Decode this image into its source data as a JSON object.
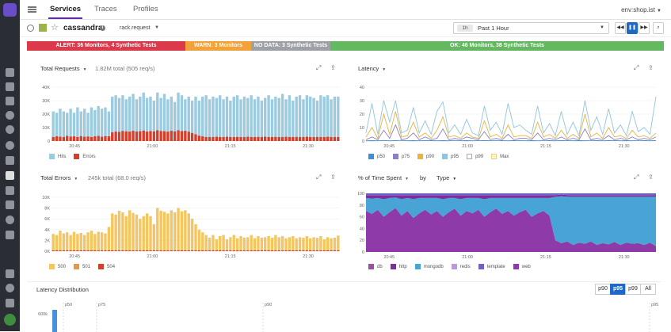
{
  "nav": {
    "tabs": [
      {
        "label": "Services",
        "active": true
      },
      {
        "label": "Traces",
        "active": false
      },
      {
        "label": "Profiles",
        "active": false
      }
    ],
    "env": "env:shop.ist"
  },
  "service": {
    "name": "cassandra",
    "operation": "rack.request",
    "time_pill": "1h",
    "time_range": "Past 1 Hour"
  },
  "status": {
    "alert": "ALERT: 36 Monitors, 4 Synthetic Tests",
    "warn": "WARN: 3 Monitors",
    "nodata": "NO DATA: 3 Synthetic Tests",
    "ok": "OK: 46 Monitors, 38 Synthetic Tests"
  },
  "panels": {
    "requests": {
      "title": "Total Requests",
      "subtitle": "1.82M total (505 req/s)"
    },
    "latency": {
      "title": "Latency"
    },
    "errors": {
      "title": "Total Errors",
      "subtitle": "245k total (68.0 req/s)"
    },
    "timespent": {
      "title": "% of Time Spent",
      "by": "by",
      "group": "Type"
    }
  },
  "latency_distribution": {
    "title": "Latency Distribution",
    "buttons": [
      {
        "label": "p90",
        "active": false
      },
      {
        "label": "p95",
        "active": true
      },
      {
        "label": "p99",
        "active": false
      },
      {
        "label": "All",
        "active": false
      }
    ],
    "markers": [
      "p50",
      "p75",
      "p90",
      "p95"
    ],
    "y_tick": "600k"
  },
  "colors": {
    "hits": "#9ccbe0",
    "errors_red": "#d33f2a",
    "e500": "#f4c662",
    "e501": "#e8974a",
    "e504": "#d33f2a",
    "p50": "#3d8ed3",
    "p75": "#8c7fc5",
    "p90": "#e8b33f",
    "p95": "#8fc5de",
    "p99": "#ffffff",
    "max": "#f7e7a0",
    "db": "#9a4fa0",
    "http": "#7e2f9e",
    "mongodb": "#47a4d4",
    "redis": "#b99ad8",
    "template": "#6c63c7",
    "web": "#8e3ba9"
  },
  "chart_data": [
    {
      "type": "bar",
      "title": "Total Requests",
      "x_ticks": [
        "20:45",
        "21:00",
        "21:15",
        "21:30"
      ],
      "y_ticks": [
        "0",
        "10K",
        "20K",
        "30K",
        "40K"
      ],
      "ylim": [
        0,
        40000
      ],
      "series": [
        {
          "name": "Hits",
          "values": [
            22000,
            21000,
            24000,
            22000,
            21000,
            24000,
            21000,
            25000,
            22000,
            24000,
            21000,
            25000,
            23000,
            26000,
            24000,
            25000,
            22000,
            33000,
            34000,
            32000,
            34000,
            31000,
            33000,
            35000,
            31000,
            33000,
            36000,
            32000,
            33000,
            30000,
            36000,
            32000,
            35000,
            31000,
            33000,
            29000,
            36000,
            34000,
            31000,
            33000,
            30000,
            33000,
            30000,
            33000,
            34000,
            31000,
            33000,
            32000,
            34000,
            31000,
            33000,
            30000,
            33000,
            34000,
            31000,
            33000,
            32000,
            34000,
            31000,
            33000,
            30000,
            32000,
            34000,
            31000,
            33000,
            32000,
            35000,
            31000,
            34000,
            30000,
            33000,
            34000,
            31000,
            34000,
            33000,
            32000,
            30000,
            34000,
            33000,
            34000,
            31000,
            33000,
            33000
          ]
        },
        {
          "name": "Errors",
          "values": [
            3000,
            3500,
            3200,
            3000,
            3800,
            3300,
            3500,
            3000,
            3600,
            3200,
            3400,
            3000,
            3500,
            3800,
            3200,
            3600,
            3500,
            6500,
            7000,
            6800,
            7500,
            7200,
            7000,
            7600,
            7100,
            7300,
            7800,
            7000,
            7400,
            7200,
            8000,
            7500,
            7300,
            7000,
            7600,
            7200,
            8000,
            7400,
            7600,
            7000,
            6000,
            5000,
            4000,
            3500,
            3000,
            3000,
            3000,
            3200,
            3000,
            3000,
            3200,
            3000,
            3000,
            3100,
            3000,
            3000,
            3200,
            3000,
            3000,
            3100,
            3000,
            3200,
            3000,
            3000,
            3100,
            3000,
            3000,
            3200,
            3000,
            3000,
            3100,
            3000,
            3000,
            3200,
            3000,
            3000,
            3100,
            3000,
            3000,
            3200,
            3000,
            3000,
            3000
          ]
        }
      ],
      "legend": [
        "Hits",
        "Errors"
      ]
    },
    {
      "type": "line",
      "title": "Latency",
      "x_ticks": [
        "20:45",
        "21:00",
        "21:15",
        "21:30"
      ],
      "y_ticks": [
        "0",
        "10",
        "20",
        "30",
        "40"
      ],
      "ylim": [
        0,
        40
      ],
      "series": [
        {
          "name": "p50",
          "values": [
            0.2,
            0.3,
            0.2,
            0.4,
            0.2,
            0.3,
            0.5,
            0.2,
            0.3,
            0.2,
            0.4,
            0.3,
            0.2,
            0.3,
            0.2,
            0.5,
            0.2,
            0.3,
            0.2,
            0.4,
            0.3,
            0.2,
            0.5,
            0.3,
            0.2,
            0.3,
            0.4,
            0.2,
            0.3,
            0.2,
            0.5,
            0.3,
            0.2,
            0.3,
            0.4,
            0.2,
            0.3,
            0.2,
            0.5,
            0.3,
            0.2,
            0.3,
            0.4,
            0.2,
            0.3,
            0.2,
            0.5,
            0.3,
            0.2,
            0.3
          ]
        },
        {
          "name": "p75",
          "values": [
            1,
            3,
            1,
            8,
            2,
            12,
            1,
            2,
            6,
            1,
            3,
            1,
            2,
            9,
            1,
            2,
            1,
            3,
            2,
            1,
            7,
            1,
            2,
            1,
            5,
            1,
            2,
            2,
            1,
            6,
            1,
            2,
            1,
            3,
            1,
            2,
            1,
            9,
            1,
            2,
            1,
            4,
            1,
            2,
            1,
            3,
            1,
            2,
            1,
            3
          ]
        },
        {
          "name": "p90",
          "values": [
            3,
            10,
            2,
            20,
            5,
            22,
            3,
            4,
            14,
            3,
            6,
            2,
            8,
            18,
            3,
            4,
            2,
            6,
            3,
            2,
            15,
            3,
            5,
            2,
            12,
            3,
            4,
            4,
            2,
            14,
            3,
            5,
            2,
            8,
            2,
            5,
            2,
            20,
            3,
            6,
            2,
            10,
            3,
            4,
            2,
            8,
            3,
            4,
            2,
            6
          ]
        },
        {
          "name": "p95",
          "values": [
            6,
            28,
            5,
            30,
            14,
            30,
            6,
            8,
            25,
            6,
            15,
            5,
            22,
            29,
            6,
            12,
            5,
            16,
            6,
            4,
            26,
            8,
            14,
            5,
            28,
            10,
            12,
            8,
            5,
            26,
            6,
            13,
            4,
            22,
            5,
            14,
            4,
            30,
            8,
            18,
            5,
            24,
            6,
            12,
            4,
            22,
            7,
            10,
            5,
            33
          ]
        },
        {
          "name": "p99",
          "values": []
        },
        {
          "name": "Max",
          "values": []
        }
      ],
      "legend": [
        "p50",
        "p75",
        "p90",
        "p95",
        "p99",
        "Max"
      ]
    },
    {
      "type": "bar",
      "title": "Total Errors",
      "x_ticks": [
        "20:45",
        "21:00",
        "21:15",
        "21:30"
      ],
      "y_ticks": [
        "0K",
        "2K",
        "4K",
        "6K",
        "8K",
        "10K"
      ],
      "ylim": [
        0,
        10000
      ],
      "series": [
        {
          "name": "500",
          "values": [
            3200,
            3000,
            3800,
            3300,
            3500,
            3000,
            3600,
            3200,
            3400,
            3000,
            3500,
            3800,
            3200,
            3600,
            3500,
            3300,
            4500,
            7000,
            6800,
            7500,
            7200,
            6500,
            7600,
            7100,
            6800,
            6000,
            6500,
            7000,
            6500,
            5000,
            8000,
            7500,
            7300,
            7000,
            7600,
            7200,
            8000,
            7400,
            7600,
            7000,
            6000,
            5000,
            4000,
            3500,
            3000,
            2500,
            3000,
            2200,
            2800,
            3000,
            2200,
            2600,
            3000,
            2400,
            2800,
            2500,
            2600,
            3000,
            2400,
            2800,
            2500,
            2600,
            2800,
            2500,
            3000,
            2600,
            2800,
            2400,
            2600,
            2800,
            2400,
            2600,
            2500,
            2800,
            2400,
            2600,
            2500,
            2800,
            2200,
            2600,
            2400,
            2500,
            2900
          ]
        },
        {
          "name": "501",
          "values": []
        },
        {
          "name": "504",
          "values": [
            150,
            150,
            150,
            150,
            150,
            150,
            150,
            150,
            150,
            150,
            150,
            150,
            150,
            150,
            150,
            150,
            150,
            150,
            150,
            150,
            150,
            150,
            150,
            150,
            150,
            150,
            150,
            150,
            150,
            150,
            150,
            150,
            150,
            150,
            150,
            150,
            150,
            150,
            150,
            150,
            150,
            150,
            150,
            150,
            150,
            150,
            150,
            150,
            150,
            150,
            150,
            150,
            150,
            150,
            150,
            150,
            150,
            150,
            150,
            150,
            150,
            150,
            150,
            150,
            150,
            150,
            150,
            150,
            150,
            150,
            150,
            150,
            150,
            150,
            150,
            150,
            150,
            150,
            150,
            150,
            150,
            150,
            150
          ]
        }
      ],
      "legend": [
        "500",
        "501",
        "504"
      ]
    },
    {
      "type": "area",
      "title": "% of Time Spent",
      "x_ticks": [
        "20:45",
        "21:00",
        "21:15",
        "21:30"
      ],
      "y_ticks": [
        "0",
        "20",
        "40",
        "60",
        "80",
        "100"
      ],
      "ylim": [
        0,
        100
      ],
      "series": [
        {
          "name": "web",
          "values": [
            70,
            65,
            72,
            60,
            68,
            75,
            62,
            70,
            58,
            66,
            72,
            64,
            70,
            60,
            68,
            74,
            62,
            70,
            66,
            72,
            60,
            68,
            74,
            65,
            70,
            62,
            68,
            72,
            60,
            66,
            70,
            62,
            20,
            15,
            18,
            12,
            16,
            14,
            18,
            12,
            15,
            13,
            17,
            12,
            16,
            14,
            15,
            12,
            16,
            10
          ]
        },
        {
          "name": "mongodb",
          "values": [
            22,
            26,
            20,
            30,
            24,
            18,
            28,
            22,
            32,
            26,
            20,
            28,
            22,
            30,
            24,
            18,
            28,
            22,
            26,
            20,
            30,
            24,
            18,
            27,
            22,
            30,
            24,
            20,
            32,
            26,
            22,
            30,
            74,
            80,
            76,
            82,
            78,
            80,
            76,
            82,
            79,
            81,
            77,
            82,
            78,
            80,
            79,
            82,
            78,
            84
          ]
        },
        {
          "name": "http",
          "values": [
            5,
            6,
            5,
            7,
            5,
            4,
            7,
            5,
            7,
            5,
            5,
            5,
            5,
            7,
            5,
            5,
            7,
            5,
            5,
            5,
            7,
            5,
            5,
            5,
            5,
            5,
            5,
            5,
            5,
            5,
            5,
            5,
            3,
            3,
            3,
            3,
            3,
            3,
            3,
            3,
            3,
            3,
            3,
            3,
            3,
            3,
            3,
            3,
            3,
            3
          ]
        },
        {
          "name": "template",
          "values": [
            3,
            3,
            3,
            3,
            3,
            3,
            3,
            3,
            3,
            3,
            3,
            3,
            3,
            3,
            3,
            3,
            3,
            3,
            3,
            3,
            3,
            3,
            3,
            3,
            3,
            3,
            3,
            3,
            3,
            3,
            3,
            3,
            3,
            2,
            3,
            3,
            3,
            3,
            3,
            3,
            3,
            3,
            3,
            3,
            3,
            3,
            3,
            3,
            3,
            3
          ]
        }
      ],
      "legend": [
        "db",
        "http",
        "mongodb",
        "redis",
        "template",
        "web"
      ]
    }
  ]
}
